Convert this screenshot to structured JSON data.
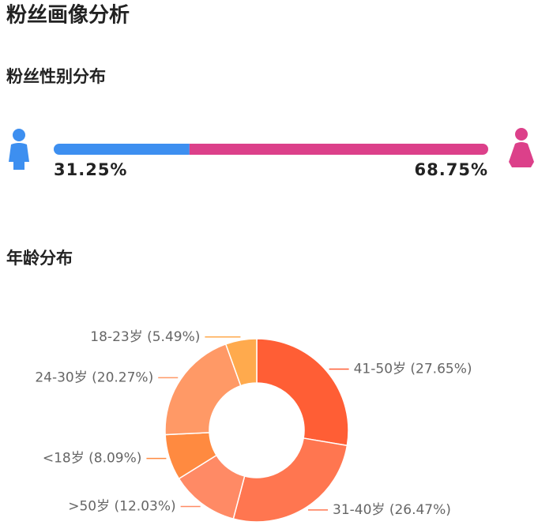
{
  "title": "粉丝画像分析",
  "chart_data": [
    {
      "type": "stacked-bar",
      "title": "粉丝性别分布",
      "values": [
        31.25,
        68.75
      ],
      "value_labels": [
        "31.25%",
        "68.75%"
      ],
      "colors": [
        "#3d8ff0",
        "#dc408a"
      ]
    },
    {
      "type": "donut",
      "title": "年龄分布",
      "categories": [
        "41-50岁",
        "31-40岁",
        ">50岁",
        "<18岁",
        "24-30岁",
        "18-23岁"
      ],
      "values": [
        27.65,
        26.47,
        12.03,
        8.09,
        20.27,
        5.49
      ],
      "value_labels": [
        "(27.65%)",
        "(26.47%)",
        "(12.03%)",
        "(8.09%)",
        "(20.27%)",
        "(5.49%)"
      ],
      "colors": [
        "#ff5e35",
        "#ff7650",
        "#ff8a65",
        "#ff8a40",
        "#ff9966",
        "#ffaa4d"
      ]
    }
  ]
}
